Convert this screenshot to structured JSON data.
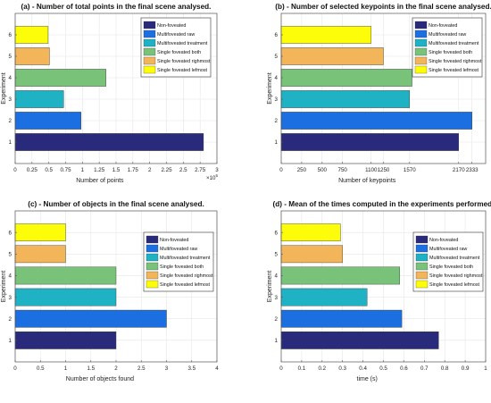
{
  "colors": {
    "Non-foveated": "#2a2a7d",
    "Multifoveated raw": "#1c6fe0",
    "Multifoveated treatment": "#1fb2c4",
    "Single foveated both": "#78c27a",
    "Single foveated righmost": "#f2b55a",
    "Single foveated lefmost": "#fdfd0a"
  },
  "chart_data": [
    {
      "type": "bar",
      "orientation": "horizontal",
      "title": "(a)  -  Number of total points in the final scene analysed.",
      "xlabel": "Number of points",
      "ylabel": "Experiment",
      "x_exponent": "×10",
      "x_exponent_power": "5",
      "categories": [
        "1",
        "2",
        "3",
        "4",
        "5",
        "6"
      ],
      "series_names": [
        "Non-foveated",
        "Multifoveated raw",
        "Multifoveated treatment",
        "Single foveated both",
        "Single foveated righmost",
        "Single foveated lefmost"
      ],
      "values": [
        280000,
        98000,
        72000,
        135000,
        51000,
        49000
      ],
      "xlim": [
        0,
        300000
      ],
      "xticks": [
        0,
        25000,
        50000,
        75000,
        100000,
        125000,
        150000,
        175000,
        200000,
        225000,
        250000,
        275000,
        300000
      ],
      "xtick_labels": [
        "0",
        "0.25",
        "0.5",
        "0.75",
        "1",
        "1.25",
        "1.5",
        "1.75",
        "2",
        "2.25",
        "2.5",
        "2.75",
        "3"
      ],
      "grid": true,
      "legend_position": "top-right"
    },
    {
      "type": "bar",
      "orientation": "horizontal",
      "title": "(b)  -  Number of selected keypoints in the final scene analysed.",
      "xlabel": "Number of keypoints",
      "ylabel": "Experiment",
      "categories": [
        "1",
        "2",
        "3",
        "4",
        "5",
        "6"
      ],
      "series_names": [
        "Non-foveated",
        "Multifoveated raw",
        "Multifoveated treatment",
        "Single foveated both",
        "Single foveated righmost",
        "Single foveated lefmost"
      ],
      "values": [
        2170,
        2333,
        1570,
        1600,
        1250,
        1100
      ],
      "xlim": [
        0,
        2500
      ],
      "xticks": [
        0,
        250,
        500,
        750,
        1100,
        1250,
        1570,
        2170,
        2333
      ],
      "xtick_labels": [
        "0",
        "250",
        "500",
        "750",
        "1100",
        "1250",
        "1570",
        "2170",
        "2333"
      ],
      "grid": true,
      "legend_position": "top-right"
    },
    {
      "type": "bar",
      "orientation": "horizontal",
      "title": "(c)  -  Number of objects in the final scene analysed.",
      "xlabel": "Number of objects found",
      "ylabel": "Experiment",
      "categories": [
        "1",
        "2",
        "3",
        "4",
        "5",
        "6"
      ],
      "series_names": [
        "Non-foveated",
        "Multifoveated raw",
        "Multifoveated treatment",
        "Single foveated both",
        "Single foveated righmost",
        "Single foveated lefmost"
      ],
      "values": [
        2,
        3,
        2,
        2,
        1,
        1
      ],
      "xlim": [
        0,
        4
      ],
      "xticks": [
        0,
        0.5,
        1,
        1.5,
        2,
        2.5,
        3,
        3.5,
        4
      ],
      "xtick_labels": [
        "0",
        "0.5",
        "1",
        "1.5",
        "2",
        "2.5",
        "3",
        "3.5",
        "4"
      ],
      "grid": true,
      "legend_position": "top-right"
    },
    {
      "type": "bar",
      "orientation": "horizontal",
      "title": "(d)  -  Mean of the times computed in the experiments performed.",
      "xlabel": "time (s)",
      "ylabel": "Experiment",
      "categories": [
        "1",
        "2",
        "3",
        "4",
        "5",
        "6"
      ],
      "series_names": [
        "Non-foveated",
        "Multifoveated raw",
        "Multifoveated treatment",
        "Single foveated both",
        "Single foveated righmost",
        "Single foveated lefmost"
      ],
      "values": [
        0.77,
        0.59,
        0.42,
        0.58,
        0.3,
        0.29
      ],
      "xlim": [
        0,
        1
      ],
      "xticks": [
        0,
        0.1,
        0.2,
        0.3,
        0.4,
        0.5,
        0.6,
        0.7,
        0.8,
        0.9,
        1
      ],
      "xtick_labels": [
        "0",
        "0.1",
        "0.2",
        "0.3",
        "0.4",
        "0.5",
        "0.6",
        "0.7",
        "0.8",
        "0.9",
        "1"
      ],
      "grid": true,
      "legend_position": "top-right"
    }
  ]
}
